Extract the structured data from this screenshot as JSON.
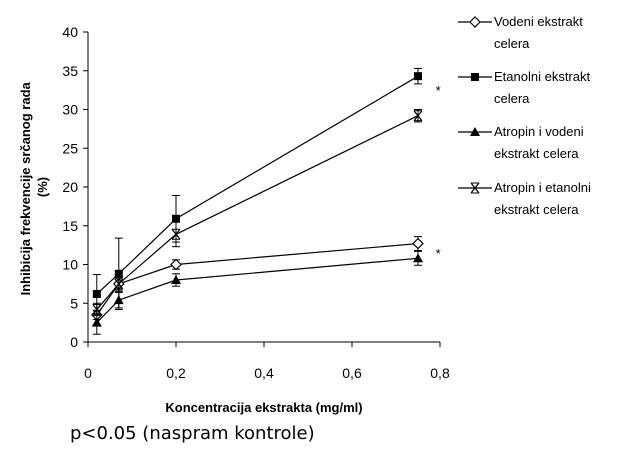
{
  "chart_data": {
    "type": "line",
    "xlabel": "Koncentracija ekstrakta (mg/ml)",
    "ylabel_lines": [
      "Inhibicija frekvencije srčanog rada",
      "(%)"
    ],
    "xlim": [
      0,
      0.8
    ],
    "ylim": [
      0,
      40
    ],
    "x_ticks": [
      0,
      0.2,
      0.4,
      0.6,
      0.8
    ],
    "x_tick_labels": [
      "0",
      "0,2",
      "0,4",
      "0,6",
      "0,8"
    ],
    "y_ticks": [
      0,
      5,
      10,
      15,
      20,
      25,
      30,
      35,
      40
    ],
    "y_tick_labels": [
      "0",
      "5",
      "10",
      "15",
      "20",
      "25",
      "30",
      "35",
      "40"
    ],
    "grid": false,
    "legend_position": "right",
    "series": [
      {
        "legend_lines": [
          "Vodeni ekstrakt",
          "celera"
        ],
        "marker": "diamond-open",
        "x": [
          0.02,
          0.07,
          0.2,
          0.75
        ],
        "y": [
          3.5,
          7.5,
          10.0,
          12.7
        ],
        "err": [
          0.6,
          0.8,
          0.6,
          0.9
        ]
      },
      {
        "legend_lines": [
          "Etanolni ekstrakt",
          "celera"
        ],
        "marker": "square-filled",
        "x": [
          0.02,
          0.07,
          0.2,
          0.75
        ],
        "y": [
          6.2,
          8.8,
          15.9,
          34.3
        ],
        "err": [
          2.5,
          4.6,
          3.0,
          1.0
        ]
      },
      {
        "legend_lines": [
          "Atropin i vodeni",
          "ekstrakt celera"
        ],
        "marker": "triangle-filled",
        "x": [
          0.02,
          0.07,
          0.2,
          0.75
        ],
        "y": [
          2.5,
          5.4,
          8.0,
          10.8
        ],
        "err": [
          1.5,
          1.0,
          0.8,
          0.9
        ]
      },
      {
        "legend_lines": [
          "Atropin i etanolni",
          "ekstrakt celera"
        ],
        "marker": "x",
        "x": [
          0.02,
          0.07,
          0.2,
          0.75
        ],
        "y": [
          4.2,
          7.5,
          13.9,
          29.2
        ],
        "err": [
          0.8,
          1.0,
          1.6,
          0.8
        ]
      }
    ],
    "annotations": [
      {
        "text": "*",
        "x": 0.79,
        "y": 32.5
      },
      {
        "text": "*",
        "x": 0.79,
        "y": 11.5
      }
    ]
  },
  "footnote": "p<0.05 (naspram kontrole)"
}
